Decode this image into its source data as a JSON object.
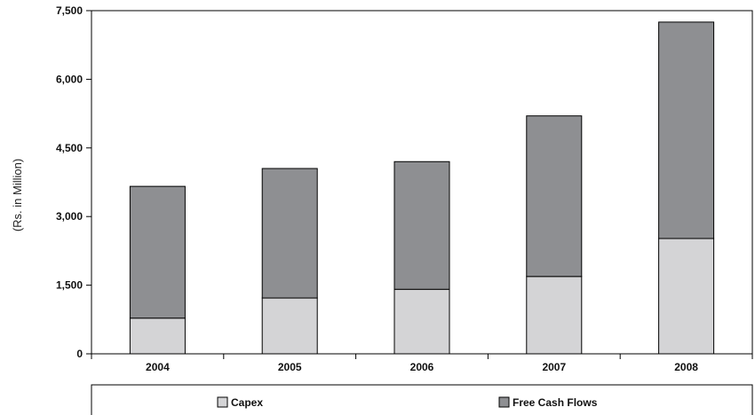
{
  "chart_data": {
    "type": "bar",
    "stacked": true,
    "title": "",
    "xlabel": "",
    "ylabel": "(Rs. in Million)",
    "categories": [
      "2004",
      "2005",
      "2006",
      "2007",
      "2008"
    ],
    "series": [
      {
        "name": "Capex",
        "values": [
          780,
          1220,
          1410,
          1690,
          2520
        ],
        "color": "#d4d4d6"
      },
      {
        "name": "Free Cash Flows",
        "values": [
          2880,
          2830,
          2790,
          3510,
          4730
        ],
        "color": "#8e8f92"
      }
    ],
    "ylim": [
      0,
      7500
    ],
    "yticks": [
      "0",
      "1,500",
      "3,000",
      "4,500",
      "6,000",
      "7,500"
    ],
    "ytick_values": [
      0,
      1500,
      3000,
      4500,
      6000,
      7500
    ],
    "grid": false,
    "legend_position": "bottom"
  }
}
